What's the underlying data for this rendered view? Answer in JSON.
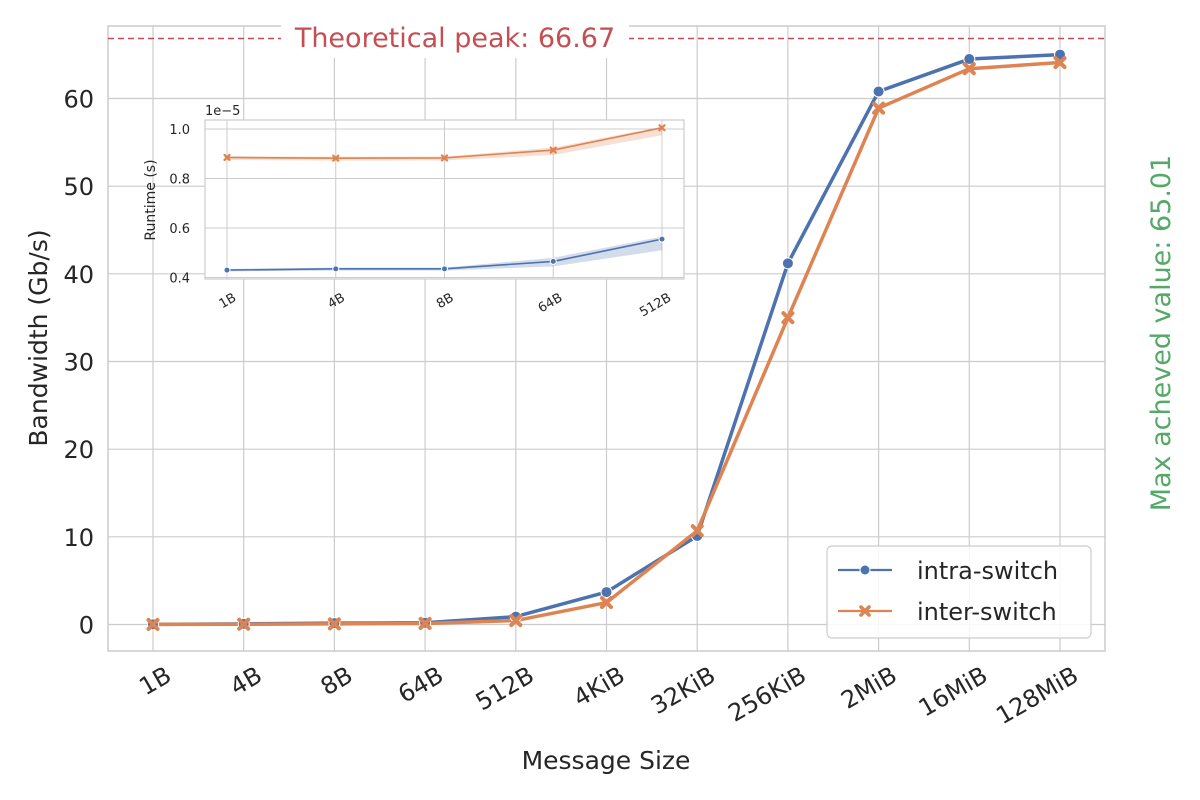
{
  "chart_data": [
    {
      "type": "line",
      "xlabel": "Message Size",
      "ylabel": "Bandwidth (Gb/s)",
      "categories": [
        "1B",
        "4B",
        "8B",
        "64B",
        "512B",
        "4KiB",
        "32KiB",
        "256KiB",
        "2MiB",
        "16MiB",
        "128MiB"
      ],
      "ylim": [
        -3,
        68
      ],
      "yticks": [
        0,
        10,
        20,
        30,
        40,
        50,
        60
      ],
      "grid": true,
      "legend_position": "lower-right",
      "series": [
        {
          "name": "intra-switch",
          "color": "#4c72b0",
          "marker": "circle",
          "values": [
            0.02,
            0.07,
            0.15,
            0.2,
            0.9,
            3.7,
            10.1,
            41.2,
            60.8,
            64.5,
            65.01
          ]
        },
        {
          "name": "inter-switch",
          "color": "#dd8452",
          "marker": "x",
          "values": [
            0.01,
            0.03,
            0.07,
            0.12,
            0.45,
            2.5,
            10.7,
            35.0,
            58.9,
            63.4,
            64.1
          ]
        }
      ],
      "annotations": {
        "peak_label": "Theoretical peak: 66.67",
        "peak_value": 66.67,
        "peak_color": "#c44e52",
        "max_label": "Max acheved value: 65.01",
        "max_color": "#55a868"
      }
    },
    {
      "type": "line",
      "xlabel": "",
      "ylabel": "Runtime (s)",
      "offset_label": "1e−5",
      "categories": [
        "1B",
        "4B",
        "8B",
        "64B",
        "512B"
      ],
      "ylim": [
        0.38,
        1.04
      ],
      "yticks": [
        0.4,
        0.6,
        0.8,
        1.0
      ],
      "yticklabels": [
        "0.4",
        "0.6",
        "0.8",
        "1.0"
      ],
      "grid": true,
      "series": [
        {
          "name": "intra-switch",
          "color": "#4c72b0",
          "marker": "circle",
          "values": [
            0.43,
            0.435,
            0.435,
            0.465,
            0.555
          ],
          "band_low": [
            0.425,
            0.428,
            0.428,
            0.445,
            0.51
          ],
          "band_high": [
            0.435,
            0.44,
            0.44,
            0.48,
            0.565
          ]
        },
        {
          "name": "inter-switch",
          "color": "#dd8452",
          "marker": "x",
          "values": [
            0.885,
            0.882,
            0.883,
            0.915,
            1.005
          ],
          "band_low": [
            0.875,
            0.872,
            0.873,
            0.895,
            0.975
          ],
          "band_high": [
            0.89,
            0.888,
            0.889,
            0.925,
            1.01
          ]
        }
      ]
    }
  ]
}
